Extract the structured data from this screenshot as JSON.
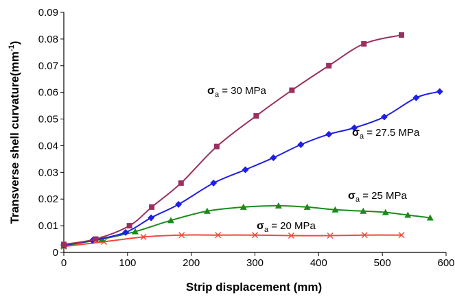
{
  "chart_data": {
    "type": "line",
    "xlabel": "Strip displacement (mm)",
    "ylabel": "Transverse shell curvature(mm",
    "ylabel_sup": "-1",
    "ylabel_close": ")",
    "xlim": [
      0,
      600
    ],
    "ylim": [
      0,
      0.09
    ],
    "xticks": [
      "0",
      "100",
      "200",
      "300",
      "400",
      "500",
      "600"
    ],
    "yticks": [
      "0",
      "0.01",
      "0.02",
      "0.03",
      "0.04",
      "0.05",
      "0.06",
      "0.07",
      "0.08",
      "0.09"
    ],
    "grid": false,
    "legend": "none",
    "series": [
      {
        "name": "σa = 30 MPa",
        "symbol": "σ",
        "subscript": "a",
        "value_text": " = 30 MPa",
        "color": "#99305f",
        "marker": "square",
        "x": [
          0,
          50,
          103,
          138,
          184,
          240,
          302,
          358,
          416,
          471,
          530
        ],
        "y": [
          0.003,
          0.005,
          0.01,
          0.017,
          0.026,
          0.0397,
          0.0512,
          0.0608,
          0.07,
          0.0782,
          0.0815
        ]
      },
      {
        "name": "σa = 27.5 MPa",
        "symbol": "σ",
        "subscript": "a",
        "value_text": " = 27.5 MPa",
        "color": "#1f1fe6",
        "marker": "diamond",
        "x": [
          0,
          45,
          97,
          137,
          180,
          235,
          285,
          329,
          372,
          416,
          456,
          503,
          553,
          590
        ],
        "y": [
          0.0028,
          0.0045,
          0.0075,
          0.013,
          0.018,
          0.026,
          0.031,
          0.0355,
          0.0404,
          0.0443,
          0.0467,
          0.0508,
          0.058,
          0.0603
        ]
      },
      {
        "name": "σa = 25 MPa",
        "symbol": "σ",
        "subscript": "a",
        "value_text": " = 25 MPa",
        "color": "#1a8a1a",
        "marker": "triangle",
        "x": [
          0,
          60,
          112,
          168,
          225,
          282,
          337,
          382,
          426,
          470,
          505,
          540,
          575
        ],
        "y": [
          0.0025,
          0.005,
          0.0078,
          0.012,
          0.0155,
          0.017,
          0.0175,
          0.017,
          0.016,
          0.0155,
          0.015,
          0.014,
          0.013
        ]
      },
      {
        "name": "σa = 20 MPa",
        "symbol": "σ",
        "subscript": "a",
        "value_text": " = 20 MPa",
        "color": "#f04a3a",
        "marker": "x",
        "x": [
          0,
          63,
          125,
          185,
          242,
          300,
          357,
          418,
          472,
          530
        ],
        "y": [
          0.0022,
          0.004,
          0.0058,
          0.0065,
          0.0065,
          0.0065,
          0.0063,
          0.0063,
          0.0065,
          0.0065
        ]
      }
    ]
  }
}
